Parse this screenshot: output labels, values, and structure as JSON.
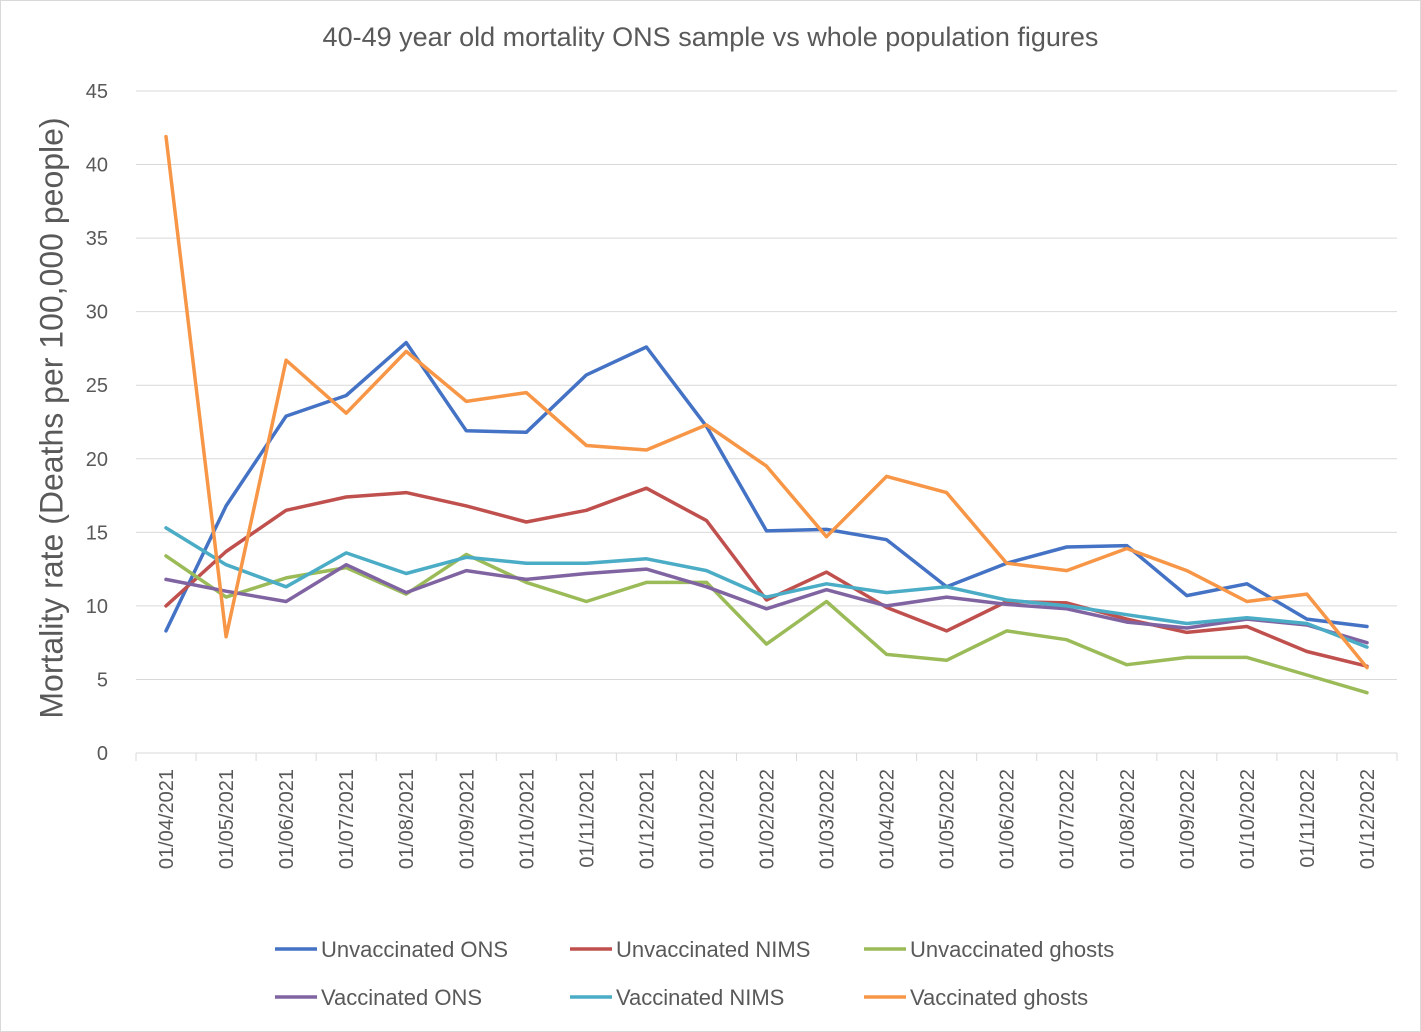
{
  "chart_data": {
    "type": "line",
    "title": "40-49 year old mortality ONS sample vs whole population figures",
    "xlabel": "",
    "ylabel": "Mortality rate (Deaths per 100,000 people)",
    "ylim": [
      0,
      45
    ],
    "yticks": [
      "0",
      "5",
      "10",
      "15",
      "20",
      "25",
      "30",
      "35",
      "40",
      "45"
    ],
    "grid": "horizontal",
    "legend_position": "bottom",
    "categories": [
      "01/04/2021",
      "01/05/2021",
      "01/06/2021",
      "01/07/2021",
      "01/08/2021",
      "01/09/2021",
      "01/10/2021",
      "01/11/2021",
      "01/12/2021",
      "01/01/2022",
      "01/02/2022",
      "01/03/2022",
      "01/04/2022",
      "01/05/2022",
      "01/06/2022",
      "01/07/2022",
      "01/08/2022",
      "01/09/2022",
      "01/10/2022",
      "01/11/2022",
      "01/12/2022"
    ],
    "series": [
      {
        "name": "Unvaccinated ONS",
        "color": "#4472c4",
        "values": [
          8.3,
          16.8,
          22.9,
          24.3,
          27.9,
          21.9,
          21.8,
          25.7,
          27.6,
          22.2,
          15.1,
          15.2,
          14.5,
          11.3,
          12.9,
          14.0,
          14.1,
          10.7,
          11.5,
          9.1,
          8.6
        ]
      },
      {
        "name": "Unvaccinated NIMS",
        "color": "#c0504d",
        "values": [
          10.0,
          13.7,
          16.5,
          17.4,
          17.7,
          16.8,
          15.7,
          16.5,
          18.0,
          15.8,
          10.4,
          12.3,
          9.9,
          8.3,
          10.3,
          10.2,
          9.1,
          8.2,
          8.6,
          6.9,
          5.9
        ]
      },
      {
        "name": "Unvaccinated ghosts",
        "color": "#9bbb59",
        "values": [
          13.4,
          10.6,
          11.9,
          12.6,
          10.8,
          13.5,
          11.6,
          10.3,
          11.6,
          11.6,
          7.4,
          10.3,
          6.7,
          6.3,
          8.3,
          7.7,
          6.0,
          6.5,
          6.5,
          5.3,
          4.1
        ]
      },
      {
        "name": "Vaccinated ONS",
        "color": "#8064a2",
        "values": [
          11.8,
          11.0,
          10.3,
          12.8,
          10.9,
          12.4,
          11.8,
          12.2,
          12.5,
          11.3,
          9.8,
          11.1,
          10.0,
          10.6,
          10.1,
          9.8,
          8.9,
          8.5,
          9.1,
          8.7,
          7.5
        ]
      },
      {
        "name": "Vaccinated NIMS",
        "color": "#4bacc6",
        "values": [
          15.3,
          12.8,
          11.3,
          13.6,
          12.2,
          13.3,
          12.9,
          12.9,
          13.2,
          12.4,
          10.6,
          11.5,
          10.9,
          11.3,
          10.4,
          10.0,
          9.4,
          8.8,
          9.2,
          8.8,
          7.2
        ]
      },
      {
        "name": "Vaccinated ghosts",
        "color": "#f79646",
        "values": [
          41.9,
          7.9,
          26.7,
          23.1,
          27.3,
          23.9,
          24.5,
          20.9,
          20.6,
          22.3,
          19.5,
          14.7,
          18.8,
          17.7,
          12.9,
          12.4,
          13.9,
          12.4,
          10.3,
          10.8,
          5.8
        ]
      }
    ]
  }
}
